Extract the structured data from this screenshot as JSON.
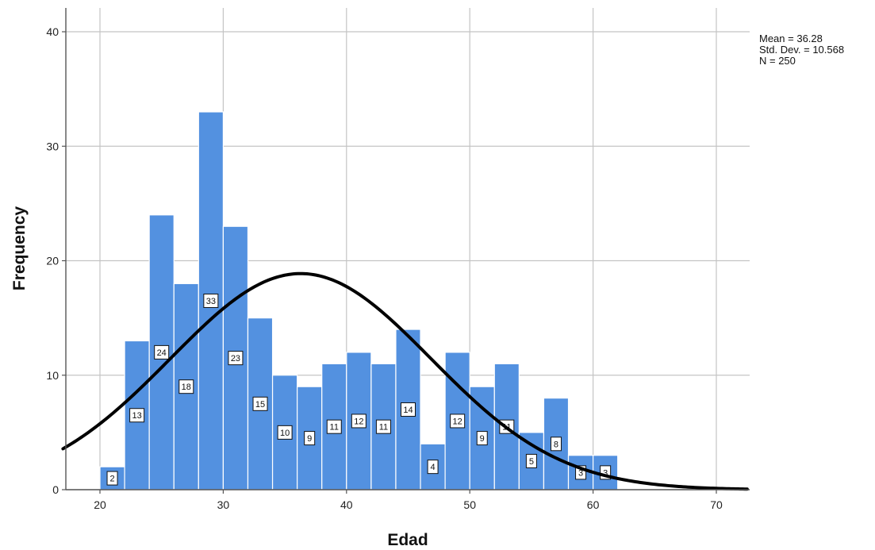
{
  "chart_data": {
    "type": "histogram",
    "xlabel": "Edad",
    "ylabel": "Frequency",
    "xlim": [
      17,
      72.5
    ],
    "ylim": [
      0,
      42
    ],
    "x_ticks": [
      "20",
      "30",
      "40",
      "50",
      "60",
      "70"
    ],
    "y_ticks": [
      "0",
      "10",
      "20",
      "30",
      "40"
    ],
    "grid": true,
    "bin_width": 2,
    "bins": [
      {
        "x0": 20,
        "x1": 22,
        "value": 2,
        "label": "2"
      },
      {
        "x0": 22,
        "x1": 24,
        "value": 13,
        "label": "13"
      },
      {
        "x0": 24,
        "x1": 26,
        "value": 24,
        "label": "24"
      },
      {
        "x0": 26,
        "x1": 28,
        "value": 18,
        "label": "18"
      },
      {
        "x0": 28,
        "x1": 30,
        "value": 33,
        "label": "33"
      },
      {
        "x0": 30,
        "x1": 32,
        "value": 23,
        "label": "23"
      },
      {
        "x0": 32,
        "x1": 34,
        "value": 15,
        "label": "15"
      },
      {
        "x0": 34,
        "x1": 36,
        "value": 10,
        "label": "10"
      },
      {
        "x0": 36,
        "x1": 38,
        "value": 9,
        "label": "9"
      },
      {
        "x0": 38,
        "x1": 40,
        "value": 11,
        "label": "11"
      },
      {
        "x0": 40,
        "x1": 42,
        "value": 12,
        "label": "12"
      },
      {
        "x0": 42,
        "x1": 44,
        "value": 11,
        "label": "11"
      },
      {
        "x0": 44,
        "x1": 46,
        "value": 14,
        "label": "14"
      },
      {
        "x0": 46,
        "x1": 48,
        "value": 4,
        "label": "4"
      },
      {
        "x0": 48,
        "x1": 50,
        "value": 12,
        "label": "12"
      },
      {
        "x0": 50,
        "x1": 52,
        "value": 9,
        "label": "9"
      },
      {
        "x0": 52,
        "x1": 54,
        "value": 11,
        "label": "11"
      },
      {
        "x0": 54,
        "x1": 56,
        "value": 5,
        "label": "5"
      },
      {
        "x0": 56,
        "x1": 58,
        "value": 8,
        "label": "8"
      },
      {
        "x0": 58,
        "x1": 60,
        "value": 3,
        "label": "3"
      },
      {
        "x0": 60,
        "x1": 62,
        "value": 3,
        "label": "3"
      }
    ],
    "normal_curve": {
      "mean": 36.28,
      "std_dev": 10.568,
      "n": 250
    },
    "stats_text": {
      "mean": "Mean = 36.28",
      "std_dev": "Std. Dev. = 10.568",
      "n": "N = 250"
    },
    "colors": {
      "bar_fill": "#5391e0",
      "bar_stroke": "#ffffff",
      "curve": "#000000",
      "grid": "#c4c4c4",
      "axis": "#555555"
    }
  }
}
